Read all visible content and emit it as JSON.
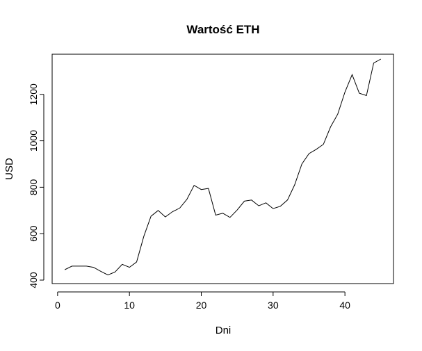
{
  "chart_data": {
    "type": "line",
    "title": "Wartość ETH",
    "xlabel": "Dni",
    "ylabel": "USD",
    "xlim": [
      -0.76,
      46.76
    ],
    "ylim": [
      385,
      1373
    ],
    "xticks": [
      0,
      10,
      20,
      30,
      40
    ],
    "yticks": [
      400,
      600,
      800,
      1000,
      1200
    ],
    "grid": false,
    "series": [
      {
        "x": [
          1,
          2,
          3,
          4,
          5,
          6,
          7,
          8,
          9,
          10,
          11,
          12,
          13,
          14,
          15,
          16,
          17,
          18,
          19,
          20,
          21,
          22,
          23,
          24,
          25,
          26,
          27,
          28,
          29,
          30,
          31,
          32,
          33,
          34,
          35,
          36,
          37,
          38,
          39,
          40,
          41,
          42,
          43,
          44,
          45
        ],
        "values": [
          445,
          460,
          460,
          460,
          455,
          438,
          422,
          435,
          468,
          455,
          478,
          588,
          675,
          700,
          672,
          695,
          710,
          748,
          808,
          790,
          795,
          680,
          688,
          670,
          702,
          740,
          745,
          720,
          733,
          708,
          718,
          745,
          810,
          900,
          945,
          963,
          985,
          1060,
          1115,
          1210,
          1285,
          1205,
          1195,
          1335,
          1352
        ]
      }
    ]
  }
}
